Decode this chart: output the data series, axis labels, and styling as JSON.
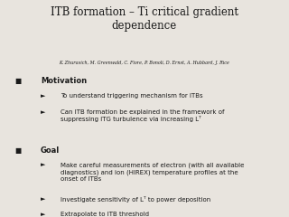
{
  "title": "ITB formation – Ti critical gradient\ndependence",
  "authors": "K. Zhuravich, M. Greenwald, C. Fiore, P. Bonoli, D. Ernst, A. Hubbard, J. Rice",
  "bullet1_header": "Motivation",
  "bullet1_items": [
    "To understand triggering mechanism for ITBs",
    "Can ITB formation be explained in the framework of\nsuppressing ITG turbulence via increasing Lᵀ"
  ],
  "bullet2_header": "Goal",
  "bullet2_items": [
    "Make careful measurements of electron (with all available\ndiagnostics) and ion (HIREX) temperature profiles at the\nonset of ITBs",
    "Investigate sensitivity of Lᵀ to power deposition",
    "Extrapolate to ITB threshold"
  ],
  "bg_color": "#e8e4de",
  "text_color": "#1a1a1a"
}
